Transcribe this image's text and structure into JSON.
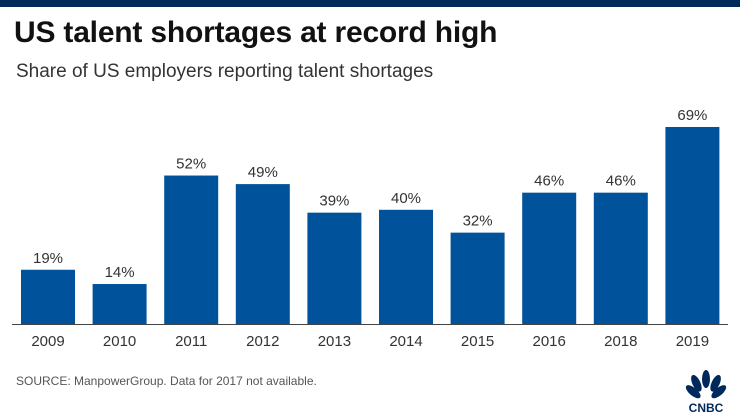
{
  "header": {
    "title": "US talent shortages at record high",
    "subtitle": "Share of US employers reporting talent shortages"
  },
  "footer": {
    "source": "SOURCE: ManpowerGroup. Data for 2017 not available.",
    "logo_text": "CNBC"
  },
  "colors": {
    "bar": "#00539b",
    "top_bar": "#00295b",
    "axis": "#444444",
    "label": "#333333"
  },
  "chart_data": {
    "type": "bar",
    "title": "US talent shortages at record high",
    "subtitle": "Share of US employers reporting talent shortages",
    "categories": [
      "2009",
      "2010",
      "2011",
      "2012",
      "2013",
      "2014",
      "2015",
      "2016",
      "2018",
      "2019"
    ],
    "values": [
      19,
      14,
      52,
      49,
      39,
      40,
      32,
      46,
      46,
      69
    ],
    "value_labels": [
      "19%",
      "14%",
      "52%",
      "49%",
      "39%",
      "40%",
      "32%",
      "46%",
      "46%",
      "69%"
    ],
    "xlabel": "",
    "ylabel": "",
    "ylim": [
      0,
      69
    ],
    "grid": false,
    "legend": "none"
  }
}
